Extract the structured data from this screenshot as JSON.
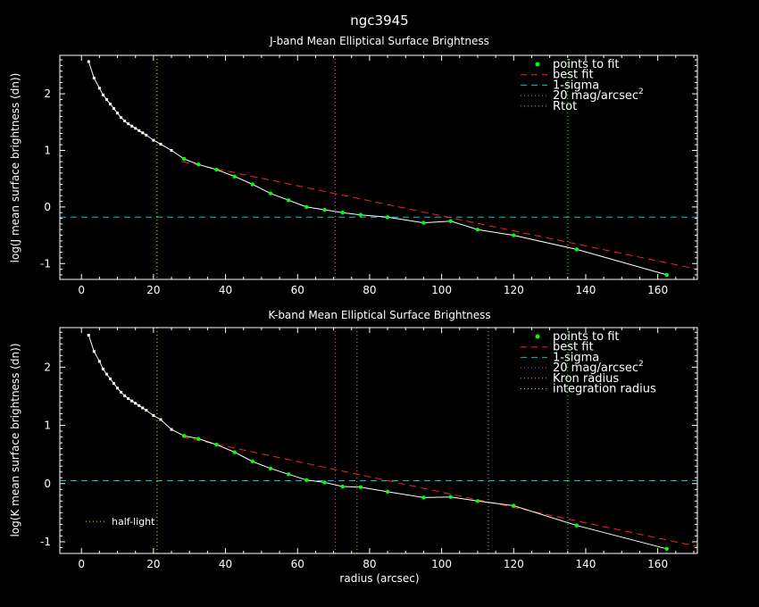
{
  "page_title": "ngc3945",
  "xlabel": "radius (arcsec)",
  "colors": {
    "background": "#000000",
    "axes": "#ffffff",
    "profile": "#ffffff",
    "points_to_fit": "#00ff00",
    "best_fit": "#ff2020",
    "one_sigma": "#00c8c8",
    "mag20": "#e040e0",
    "rtot": "#00ff00",
    "kron": "#ff8c00",
    "integration": "#b0b0b0",
    "half_light": "#e6e600"
  },
  "chart_data": [
    {
      "type": "line",
      "title": "J-band Mean Elliptical Surface Brightness",
      "xlabel": "",
      "ylabel": "log(J mean surface brightness (dn))",
      "xlim": [
        -6,
        171
      ],
      "ylim": [
        -1.28,
        2.68
      ],
      "xticks": [
        0,
        20,
        40,
        60,
        80,
        100,
        120,
        140,
        160
      ],
      "yticks": [
        -1,
        0,
        1,
        2
      ],
      "grid": false,
      "legend_position": "top-right",
      "legend": [
        {
          "label": "points to fit",
          "style": "point",
          "color": "#00ff00"
        },
        {
          "label": "best fit",
          "style": "dash",
          "color": "#ff2020"
        },
        {
          "label": "1-sigma",
          "style": "dash",
          "color": "#00c8c8"
        },
        {
          "label": "20 mag/arcsec",
          "sup": "2",
          "style": "dot",
          "color": "#e040e0"
        },
        {
          "label": "Rtot",
          "style": "dot",
          "color": "#00ff00"
        }
      ],
      "series": [
        {
          "kind": "profile",
          "x": [
            2,
            3.5,
            5,
            6,
            7,
            8,
            9,
            10,
            11,
            12,
            13,
            14,
            15,
            16,
            17,
            18,
            20,
            22,
            25,
            28.5,
            32.5,
            37.5,
            42.5,
            47.5,
            52.5,
            57.5,
            62.5,
            67.5,
            72.5,
            77.5,
            85,
            95,
            102.5,
            110,
            120,
            137.5,
            162.5
          ],
          "y": [
            2.57,
            2.28,
            2.1,
            1.98,
            1.9,
            1.82,
            1.74,
            1.66,
            1.58,
            1.52,
            1.47,
            1.43,
            1.39,
            1.35,
            1.31,
            1.27,
            1.18,
            1.11,
            1.0,
            0.85,
            0.75,
            0.66,
            0.54,
            0.4,
            0.24,
            0.12,
            0.0,
            -0.05,
            -0.1,
            -0.14,
            -0.18,
            -0.28,
            -0.25,
            -0.4,
            -0.5,
            -0.75,
            -1.2
          ]
        },
        {
          "kind": "fit_points",
          "x": [
            28.5,
            32.5,
            37.5,
            42.5,
            47.5,
            52.5,
            57.5,
            62.5,
            67.5,
            72.5,
            77.5,
            85,
            95,
            102.5,
            110,
            120,
            137.5,
            162.5
          ],
          "y": [
            0.85,
            0.75,
            0.66,
            0.54,
            0.4,
            0.24,
            0.12,
            0.0,
            -0.05,
            -0.1,
            -0.14,
            -0.18,
            -0.28,
            -0.25,
            -0.4,
            -0.5,
            -0.75,
            -1.2
          ]
        },
        {
          "kind": "best_fit",
          "x": [
            28,
            171
          ],
          "y": [
            0.8,
            -1.1
          ]
        }
      ],
      "hlines": [
        {
          "kind": "one_sigma",
          "y": -0.18
        }
      ],
      "vlines": [
        {
          "kind": "half_light",
          "x": 21
        },
        {
          "kind": "mag20",
          "x": 70.5
        },
        {
          "kind": "rtot",
          "x": 135
        }
      ]
    },
    {
      "type": "line",
      "title": "K-band Mean Elliptical Surface Brightness",
      "xlabel": "radius (arcsec)",
      "ylabel": "log(K mean surface brightness (dn))",
      "xlim": [
        -6,
        171
      ],
      "ylim": [
        -1.2,
        2.68
      ],
      "xticks": [
        0,
        20,
        40,
        60,
        80,
        100,
        120,
        140,
        160
      ],
      "yticks": [
        -1,
        0,
        1,
        2
      ],
      "grid": false,
      "legend_position": "top-right",
      "legend": [
        {
          "label": "points to fit",
          "style": "point",
          "color": "#00ff00"
        },
        {
          "label": "best fit",
          "style": "dash",
          "color": "#ff2020"
        },
        {
          "label": "1-sigma",
          "style": "dash",
          "color": "#00c8c8"
        },
        {
          "label": "20 mag/arcsec",
          "sup": "2",
          "style": "dot",
          "color": "#e040e0"
        },
        {
          "label": "Kron radius",
          "style": "dot",
          "color": "#ff8c00"
        },
        {
          "label": "integration radius",
          "style": "dot",
          "color": "#b0b0b0"
        }
      ],
      "annotation": {
        "label": "half-light",
        "style": "dot",
        "color": "#e6e600"
      },
      "series": [
        {
          "kind": "profile",
          "x": [
            2,
            3.5,
            5,
            6,
            7,
            8,
            9,
            10,
            11,
            12,
            13,
            14,
            15,
            16,
            17,
            18,
            20,
            22,
            25,
            28.5,
            32.5,
            37.5,
            42.5,
            47.5,
            52.5,
            57.5,
            62.5,
            67.5,
            72.5,
            77.5,
            85,
            95,
            102.5,
            110,
            120,
            137.5,
            162.5
          ],
          "y": [
            2.55,
            2.27,
            2.1,
            1.97,
            1.88,
            1.8,
            1.72,
            1.64,
            1.57,
            1.51,
            1.46,
            1.42,
            1.38,
            1.34,
            1.3,
            1.26,
            1.17,
            1.1,
            0.93,
            0.82,
            0.77,
            0.67,
            0.54,
            0.38,
            0.26,
            0.16,
            0.06,
            0.02,
            -0.05,
            -0.06,
            -0.14,
            -0.24,
            -0.23,
            -0.3,
            -0.38,
            -0.72,
            -1.12
          ]
        },
        {
          "kind": "fit_points",
          "x": [
            28.5,
            32.5,
            37.5,
            42.5,
            47.5,
            52.5,
            57.5,
            62.5,
            67.5,
            72.5,
            77.5,
            85,
            95,
            102.5,
            110,
            120,
            137.5,
            162.5
          ],
          "y": [
            0.82,
            0.77,
            0.67,
            0.54,
            0.38,
            0.26,
            0.16,
            0.06,
            0.02,
            -0.05,
            -0.06,
            -0.14,
            -0.24,
            -0.23,
            -0.3,
            -0.38,
            -0.72,
            -1.12
          ]
        },
        {
          "kind": "best_fit",
          "x": [
            28,
            171
          ],
          "y": [
            0.8,
            -1.08
          ]
        }
      ],
      "hlines": [
        {
          "kind": "one_sigma",
          "y": 0.05
        }
      ],
      "vlines": [
        {
          "kind": "half_light",
          "x": 21
        },
        {
          "kind": "mag20",
          "x": 70.5
        },
        {
          "kind": "kron",
          "x": 76.5
        },
        {
          "kind": "integration",
          "x": 113
        },
        {
          "kind": "rtot",
          "x": 135
        }
      ]
    }
  ]
}
